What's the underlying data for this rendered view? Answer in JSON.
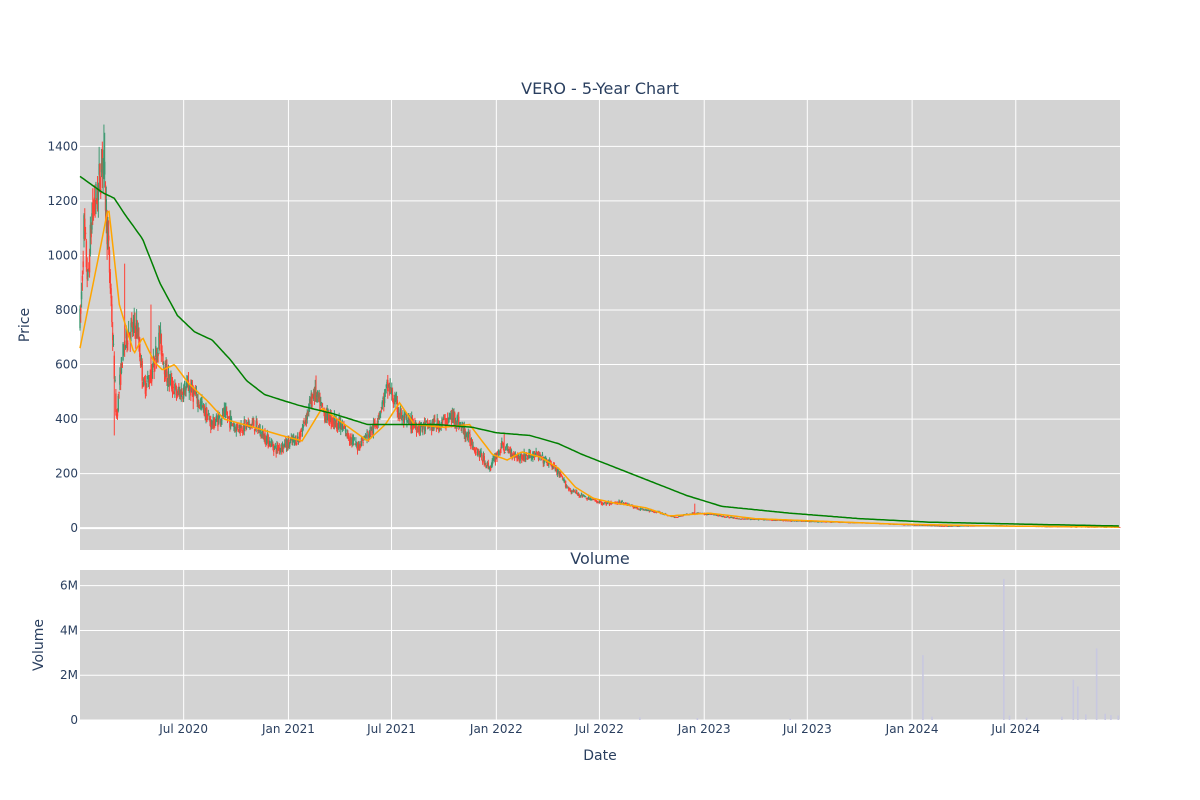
{
  "chart_data": [
    {
      "type": "candlestick",
      "title": "VERO - 5-Year Chart",
      "ylabel": "Price",
      "xlabel": "",
      "ylim": [
        -80,
        1570
      ],
      "xlim": [
        "2020-01-01",
        "2024-12-31"
      ],
      "y_ticks": [
        0,
        200,
        400,
        600,
        800,
        1000,
        1200,
        1400
      ],
      "y_tick_labels": [
        "0",
        "200",
        "400",
        "600",
        "800",
        "1000",
        "1200",
        "1400"
      ],
      "grid": true,
      "colors": {
        "increasing": "#3d9970",
        "decreasing": "#ff4136",
        "ma_short": "#ffa500",
        "ma_long": "#008000",
        "plot_bg": "#d3d3d3",
        "grid": "#ffffff"
      },
      "price_anchors": [
        [
          "2020-01-02",
          760
        ],
        [
          "2020-01-08",
          1100
        ],
        [
          "2020-01-15",
          900
        ],
        [
          "2020-01-22",
          1150
        ],
        [
          "2020-02-01",
          1220
        ],
        [
          "2020-02-10",
          1380
        ],
        [
          "2020-02-18",
          1100
        ],
        [
          "2020-02-25",
          820
        ],
        [
          "2020-03-05",
          400
        ],
        [
          "2020-03-15",
          620
        ],
        [
          "2020-03-25",
          720
        ],
        [
          "2020-04-10",
          740
        ],
        [
          "2020-04-22",
          520
        ],
        [
          "2020-05-05",
          560
        ],
        [
          "2020-05-20",
          700
        ],
        [
          "2020-06-01",
          560
        ],
        [
          "2020-06-20",
          490
        ],
        [
          "2020-07-10",
          520
        ],
        [
          "2020-08-01",
          450
        ],
        [
          "2020-08-20",
          380
        ],
        [
          "2020-09-10",
          420
        ],
        [
          "2020-10-01",
          370
        ],
        [
          "2020-11-01",
          380
        ],
        [
          "2020-12-10",
          290
        ],
        [
          "2021-01-20",
          330
        ],
        [
          "2021-02-15",
          500
        ],
        [
          "2021-03-05",
          420
        ],
        [
          "2021-04-01",
          380
        ],
        [
          "2021-05-01",
          300
        ],
        [
          "2021-06-01",
          370
        ],
        [
          "2021-06-25",
          520
        ],
        [
          "2021-07-20",
          400
        ],
        [
          "2021-08-20",
          370
        ],
        [
          "2021-09-20",
          380
        ],
        [
          "2021-10-20",
          410
        ],
        [
          "2021-11-20",
          310
        ],
        [
          "2021-12-20",
          220
        ],
        [
          "2022-01-10",
          300
        ],
        [
          "2022-02-10",
          260
        ],
        [
          "2022-03-10",
          270
        ],
        [
          "2022-04-10",
          230
        ],
        [
          "2022-05-10",
          140
        ],
        [
          "2022-06-10",
          110
        ],
        [
          "2022-07-10",
          90
        ],
        [
          "2022-08-10",
          95
        ],
        [
          "2022-09-10",
          70
        ],
        [
          "2022-10-10",
          60
        ],
        [
          "2022-11-10",
          40
        ],
        [
          "2022-12-10",
          55
        ],
        [
          "2023-01-15",
          50
        ],
        [
          "2023-03-01",
          35
        ],
        [
          "2023-05-01",
          30
        ],
        [
          "2023-07-01",
          25
        ],
        [
          "2023-09-01",
          22
        ],
        [
          "2023-11-01",
          18
        ],
        [
          "2024-01-01",
          12
        ],
        [
          "2024-03-01",
          8
        ],
        [
          "2024-06-01",
          10
        ],
        [
          "2024-09-01",
          6
        ],
        [
          "2024-12-31",
          4
        ]
      ],
      "ma_short": [
        [
          "2020-01-01",
          660
        ],
        [
          "2020-02-05",
          1020
        ],
        [
          "2020-02-20",
          1180
        ],
        [
          "2020-03-10",
          820
        ],
        [
          "2020-04-05",
          640
        ],
        [
          "2020-04-20",
          700
        ],
        [
          "2020-05-10",
          610
        ],
        [
          "2020-05-25",
          580
        ],
        [
          "2020-06-15",
          600
        ],
        [
          "2020-07-10",
          530
        ],
        [
          "2020-08-10",
          470
        ],
        [
          "2020-09-10",
          400
        ],
        [
          "2020-10-15",
          380
        ],
        [
          "2020-12-20",
          340
        ],
        [
          "2021-01-25",
          320
        ],
        [
          "2021-03-01",
          440
        ],
        [
          "2021-04-10",
          380
        ],
        [
          "2021-05-20",
          320
        ],
        [
          "2021-06-20",
          380
        ],
        [
          "2021-07-15",
          460
        ],
        [
          "2021-08-10",
          380
        ],
        [
          "2021-10-01",
          370
        ],
        [
          "2021-11-15",
          380
        ],
        [
          "2021-12-25",
          270
        ],
        [
          "2022-01-20",
          250
        ],
        [
          "2022-02-15",
          280
        ],
        [
          "2022-03-20",
          260
        ],
        [
          "2022-04-20",
          220
        ],
        [
          "2022-05-20",
          150
        ],
        [
          "2022-06-20",
          110
        ],
        [
          "2022-07-20",
          95
        ],
        [
          "2022-09-20",
          75
        ],
        [
          "2022-11-01",
          45
        ],
        [
          "2023-01-10",
          55
        ],
        [
          "2023-04-01",
          35
        ],
        [
          "2023-08-01",
          25
        ],
        [
          "2023-12-01",
          15
        ],
        [
          "2024-06-01",
          8
        ],
        [
          "2024-12-31",
          4
        ]
      ],
      "ma_long": [
        [
          "2020-01-01",
          1290
        ],
        [
          "2020-02-10",
          1230
        ],
        [
          "2020-03-01",
          1210
        ],
        [
          "2020-03-20",
          1150
        ],
        [
          "2020-04-20",
          1060
        ],
        [
          "2020-05-20",
          900
        ],
        [
          "2020-06-20",
          780
        ],
        [
          "2020-07-20",
          720
        ],
        [
          "2020-08-20",
          690
        ],
        [
          "2020-09-20",
          620
        ],
        [
          "2020-10-20",
          540
        ],
        [
          "2020-11-20",
          490
        ],
        [
          "2020-12-20",
          470
        ],
        [
          "2021-01-20",
          450
        ],
        [
          "2021-03-20",
          420
        ],
        [
          "2021-05-20",
          380
        ],
        [
          "2021-07-20",
          380
        ],
        [
          "2021-09-20",
          380
        ],
        [
          "2021-11-20",
          370
        ],
        [
          "2022-01-01",
          350
        ],
        [
          "2022-03-01",
          340
        ],
        [
          "2022-04-20",
          310
        ],
        [
          "2022-06-01",
          270
        ],
        [
          "2022-08-01",
          220
        ],
        [
          "2022-10-01",
          170
        ],
        [
          "2022-12-01",
          120
        ],
        [
          "2023-02-01",
          80
        ],
        [
          "2023-06-01",
          55
        ],
        [
          "2023-10-01",
          35
        ],
        [
          "2024-02-01",
          22
        ],
        [
          "2024-08-01",
          14
        ],
        [
          "2024-12-31",
          8
        ]
      ],
      "spikes": [
        [
          "2020-02-12",
          1480
        ],
        [
          "2020-02-14",
          1450
        ],
        [
          "2020-03-01",
          340
        ],
        [
          "2020-03-20",
          970
        ],
        [
          "2020-05-05",
          820
        ],
        [
          "2021-02-18",
          560
        ],
        [
          "2021-06-28",
          550
        ],
        [
          "2022-01-15",
          350
        ],
        [
          "2022-12-15",
          90
        ]
      ]
    },
    {
      "type": "bar",
      "title": "Volume",
      "ylabel": "Volume",
      "xlabel": "Date",
      "ylim": [
        0,
        6700000
      ],
      "xlim": [
        "2020-01-01",
        "2024-12-31"
      ],
      "y_ticks": [
        0,
        2000000,
        4000000,
        6000000
      ],
      "y_tick_labels": [
        "0",
        "2M",
        "4M",
        "6M"
      ],
      "x_ticks": [
        "2020-07-01",
        "2021-01-01",
        "2021-07-01",
        "2022-01-01",
        "2022-07-01",
        "2023-01-01",
        "2023-07-01",
        "2024-01-01",
        "2024-07-01"
      ],
      "x_tick_labels": [
        "Jul 2020",
        "Jan 2021",
        "Jul 2021",
        "Jan 2022",
        "Jul 2022",
        "Jan 2023",
        "Jul 2023",
        "Jan 2024",
        "Jul 2024"
      ],
      "grid": true,
      "colors": {
        "bar": "#c8c8e0",
        "plot_bg": "#d3d3d3",
        "grid": "#ffffff"
      },
      "volume": [
        [
          "2022-09-10",
          120000
        ],
        [
          "2022-12-20",
          90000
        ],
        [
          "2023-06-01",
          60000
        ],
        [
          "2024-01-20",
          2900000
        ],
        [
          "2024-02-05",
          150000
        ],
        [
          "2024-06-10",
          6300000
        ],
        [
          "2024-06-20",
          200000
        ],
        [
          "2024-07-20",
          110000
        ],
        [
          "2024-09-20",
          150000
        ],
        [
          "2024-10-10",
          1800000
        ],
        [
          "2024-10-18",
          1500000
        ],
        [
          "2024-11-01",
          250000
        ],
        [
          "2024-11-20",
          3200000
        ],
        [
          "2024-12-05",
          280000
        ],
        [
          "2024-12-15",
          220000
        ],
        [
          "2024-12-28",
          200000
        ]
      ]
    }
  ]
}
